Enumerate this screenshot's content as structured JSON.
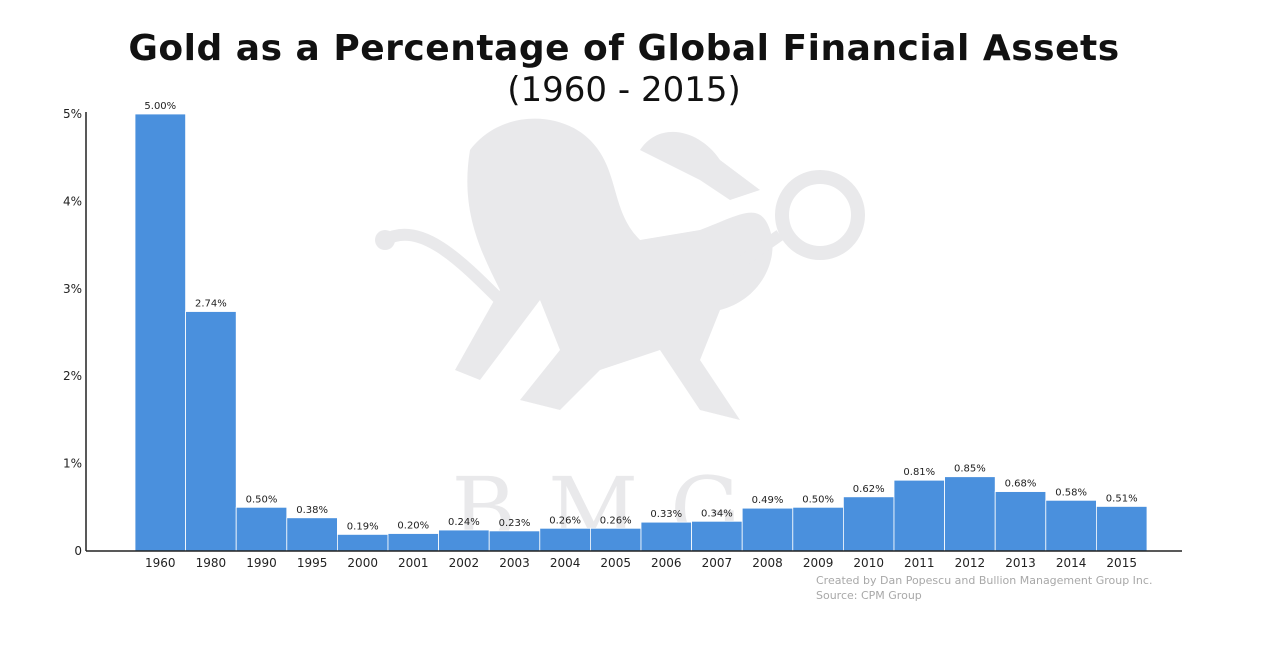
{
  "colors": {
    "bar": "#4a90dd",
    "axis": "#222222",
    "watermark": "#e9e9eb"
  },
  "watermark": {
    "icon": "griffin-logo-icon",
    "letters": "BMG"
  },
  "credits": {
    "created_by": "Created by Dan Popescu and Bullion Management Group Inc.",
    "source": "Source: CPM Group"
  },
  "chart_data": {
    "type": "bar",
    "title": "Gold as a Percentage of Global Financial Assets",
    "subtitle": "(1960 - 2015)",
    "xlabel": "",
    "ylabel": "",
    "categories": [
      "1960",
      "1980",
      "1990",
      "1995",
      "2000",
      "2001",
      "2002",
      "2003",
      "2004",
      "2005",
      "2006",
      "2007",
      "2008",
      "2009",
      "2010",
      "2011",
      "2012",
      "2013",
      "2014",
      "2015"
    ],
    "values": [
      5.0,
      2.74,
      0.5,
      0.38,
      0.19,
      0.2,
      0.24,
      0.23,
      0.26,
      0.26,
      0.33,
      0.34,
      0.49,
      0.5,
      0.62,
      0.81,
      0.85,
      0.68,
      0.58,
      0.51
    ],
    "data_labels": [
      "5.00%",
      "2.74%",
      "0.50%",
      "0.38%",
      "0.19%",
      "0.20%",
      "0.24%",
      "0.23%",
      "0.26%",
      "0.26%",
      "0.33%",
      "0.34%",
      "0.49%",
      "0.50%",
      "0.62%",
      "0.81%",
      "0.85%",
      "0.68%",
      "0.58%",
      "0.51%"
    ],
    "y_ticks": [
      0,
      1,
      2,
      3,
      4,
      5
    ],
    "y_tick_labels": [
      "0",
      "1%",
      "2%",
      "3%",
      "4%",
      "5%"
    ],
    "ylim": [
      0,
      5
    ],
    "grid": false,
    "legend": "none"
  }
}
